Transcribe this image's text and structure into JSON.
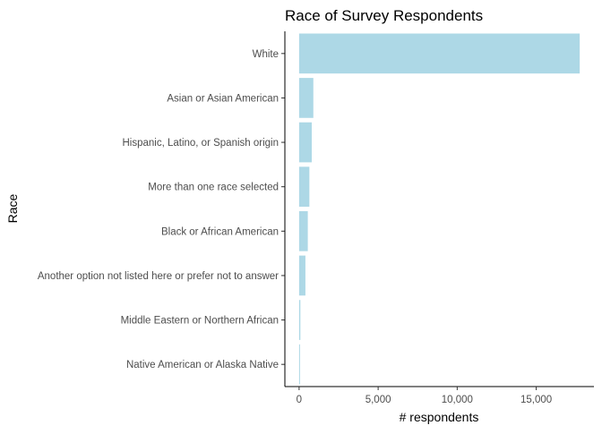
{
  "chart_data": {
    "type": "bar",
    "orientation": "horizontal",
    "title": "Race of Survey Respondents",
    "xlabel": "# respondents",
    "ylabel": "Race",
    "categories": [
      "White",
      "Asian or Asian American",
      "Hispanic, Latino, or Spanish origin",
      "More than one race selected",
      "Black or African American",
      "Another option not listed here or prefer not to answer",
      "Middle Eastern or Northern African",
      "Native American or Alaska Native"
    ],
    "values": [
      17750,
      900,
      800,
      650,
      550,
      400,
      80,
      40
    ],
    "xlim": [
      -900,
      18650
    ],
    "xticks": [
      0,
      5000,
      10000,
      15000
    ],
    "xtick_labels": [
      "0",
      "5,000",
      "10,000",
      "15,000"
    ],
    "bar_color": "#add8e6",
    "grid": false,
    "legend": "none"
  }
}
